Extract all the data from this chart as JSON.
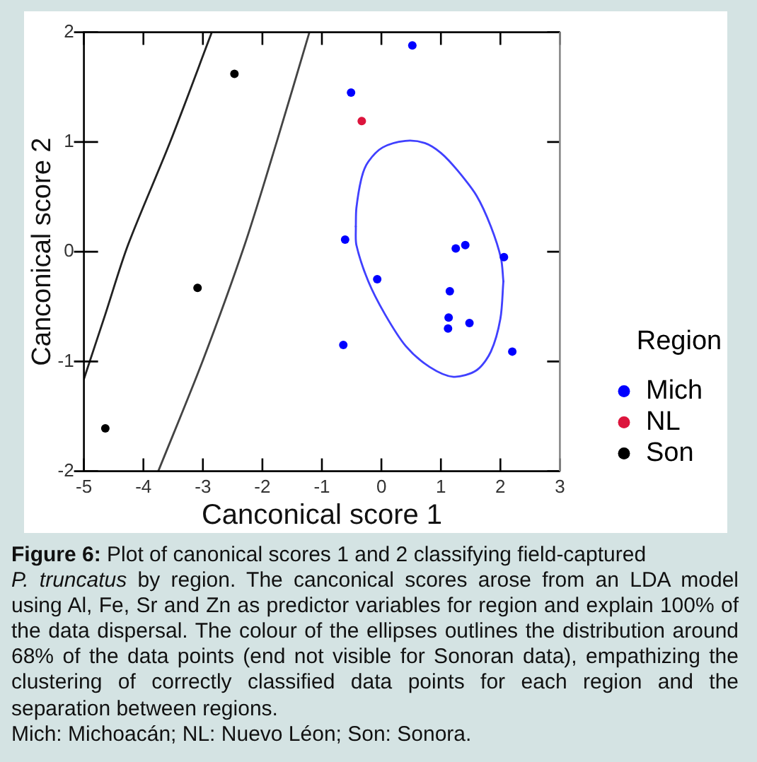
{
  "chart_data": {
    "type": "scatter",
    "xlabel": "Canconical score 1",
    "ylabel": "Canconical score 2",
    "legend_title": "Region",
    "legend": "right",
    "marker": "circle",
    "grid": false,
    "xlim": [
      -5,
      3
    ],
    "xticks": [
      -5,
      -4,
      -3,
      -2,
      -1,
      0,
      1,
      2,
      3
    ],
    "ylim": [
      -2,
      2
    ],
    "yticks": [
      -2,
      -1,
      0,
      1,
      2
    ],
    "series": [
      {
        "name": "Mich",
        "color": "#0000ff",
        "x": [
          0.52,
          -0.51,
          -0.61,
          1.25,
          1.41,
          2.06,
          -0.07,
          1.15,
          1.13,
          1.12,
          1.48,
          -0.64,
          2.2
        ],
        "values": [
          1.88,
          1.45,
          0.11,
          0.03,
          0.06,
          -0.05,
          -0.25,
          -0.36,
          -0.6,
          -0.7,
          -0.65,
          -0.85,
          -0.91
        ]
      },
      {
        "name": "NL",
        "color": "#dc143c",
        "x": [
          -0.33
        ],
        "values": [
          1.19
        ]
      },
      {
        "name": "Son",
        "color": "#000000",
        "x": [
          -2.47,
          -3.09,
          -4.64
        ],
        "values": [
          1.62,
          -0.33,
          -1.61
        ]
      },
      {
        "type": "line",
        "marker": "none",
        "color": "#4040ff",
        "x": [
          -0.43,
          -0.42,
          -0.33,
          -0.22,
          0.02,
          0.4,
          0.73,
          1.0,
          1.28,
          1.6,
          1.84,
          2.01,
          2.05
        ],
        "values": [
          0.23,
          0.4,
          0.68,
          0.82,
          0.95,
          1.01,
          0.99,
          0.9,
          0.74,
          0.51,
          0.23,
          -0.06,
          -0.27
        ]
      },
      {
        "type": "line",
        "marker": "none",
        "color": "#4040ff",
        "x": [
          -0.43,
          -0.42,
          -0.22,
          0.06,
          0.41,
          0.81,
          1.21,
          1.6,
          1.84,
          2.0,
          2.05
        ],
        "values": [
          0.23,
          0.06,
          -0.27,
          -0.57,
          -0.86,
          -1.05,
          -1.14,
          -1.08,
          -0.91,
          -0.61,
          -0.27
        ]
      },
      {
        "type": "line",
        "marker": "none",
        "color": "#222222",
        "x": [
          -5.0,
          -4.64,
          -4.26,
          -3.55,
          -2.85
        ],
        "values": [
          -1.16,
          -0.57,
          0.06,
          1.0,
          2.0
        ]
      },
      {
        "type": "line",
        "marker": "none",
        "color": "#444444",
        "x": [
          -3.75,
          -3.0,
          -2.3,
          -1.76,
          -1.21
        ],
        "values": [
          -2.0,
          -0.99,
          0.06,
          1.0,
          2.0
        ]
      }
    ],
    "annotations": [
      "Figure 6:",
      "Plot of canonical scores 1 and 2 classifying field-captured",
      "P. truncatus",
      "by region. The canconical scores arose from an LDA model using Al, Fe, Sr and Zn as predictor variables for region and explain 100% of the data dispersal. The colour of the ellipses outlines the distribution around 68% of the data points (end not visible for Sonoran data), empathizing the clustering of correctly classified data points for each region and the separation between regions.",
      "Mich: Michoacán; NL: Nuevo Léon; Son: Sonora."
    ]
  }
}
